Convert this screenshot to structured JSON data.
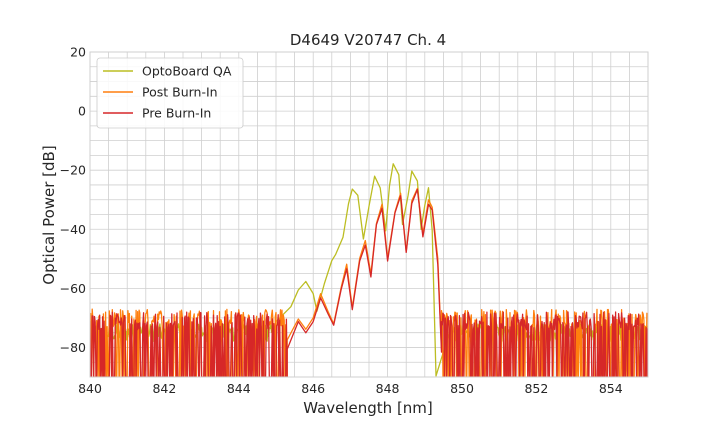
{
  "chart_data": {
    "type": "line",
    "title": "D4649 V20747 Ch. 4",
    "xlabel": "Wavelength [nm]",
    "ylabel": "Optical Power [dB]",
    "xlim": [
      840,
      855
    ],
    "ylim": [
      -90,
      20
    ],
    "x_ticks": [
      840,
      842,
      844,
      846,
      848,
      850,
      852,
      854
    ],
    "y_ticks": [
      20,
      0,
      -20,
      -40,
      -60,
      -80
    ],
    "y_tick_labels": [
      "20",
      "0",
      "−20",
      "−40",
      "−60",
      "−80"
    ],
    "grid": true,
    "legend_position": "top-left",
    "series": [
      {
        "name": "OptoBoard QA",
        "color": "#bcbd22",
        "noise_floor": -75,
        "noise_range": [
          840,
          845.0,
          849.2,
          855
        ],
        "points": [
          [
            845.0,
            -71
          ],
          [
            845.4,
            -66
          ],
          [
            845.6,
            -61
          ],
          [
            845.8,
            -58
          ],
          [
            846.0,
            -62
          ],
          [
            846.1,
            -68
          ],
          [
            846.3,
            -58
          ],
          [
            846.5,
            -51
          ],
          [
            846.6,
            -49
          ],
          [
            846.8,
            -43
          ],
          [
            846.95,
            -31
          ],
          [
            847.05,
            -26
          ],
          [
            847.2,
            -28
          ],
          [
            847.35,
            -43
          ],
          [
            847.5,
            -32
          ],
          [
            847.65,
            -22
          ],
          [
            847.8,
            -26
          ],
          [
            847.95,
            -40
          ],
          [
            848.05,
            -25
          ],
          [
            848.15,
            -18
          ],
          [
            848.3,
            -22
          ],
          [
            848.4,
            -38
          ],
          [
            848.55,
            -28
          ],
          [
            848.65,
            -20
          ],
          [
            848.8,
            -24
          ],
          [
            848.9,
            -40
          ],
          [
            849.0,
            -32
          ],
          [
            849.1,
            -26
          ],
          [
            849.2,
            -40
          ],
          [
            849.3,
            -90
          ]
        ]
      },
      {
        "name": "Post Burn-In",
        "color": "#ff7f0e",
        "noise_floor": -86,
        "noise_range": [
          840,
          845.3,
          849.0,
          855
        ],
        "points": [
          [
            845.3,
            -78
          ],
          [
            845.6,
            -70
          ],
          [
            845.8,
            -74
          ],
          [
            846.0,
            -70
          ],
          [
            846.2,
            -62
          ],
          [
            846.4,
            -68
          ],
          [
            846.55,
            -72
          ],
          [
            846.75,
            -60
          ],
          [
            846.9,
            -52
          ],
          [
            847.05,
            -66
          ],
          [
            847.25,
            -50
          ],
          [
            847.4,
            -44
          ],
          [
            847.55,
            -55
          ],
          [
            847.7,
            -38
          ],
          [
            847.85,
            -32
          ],
          [
            848.0,
            -50
          ],
          [
            848.2,
            -34
          ],
          [
            848.35,
            -28
          ],
          [
            848.5,
            -47
          ],
          [
            848.65,
            -30
          ],
          [
            848.8,
            -26
          ],
          [
            848.95,
            -42
          ],
          [
            849.1,
            -30
          ],
          [
            849.2,
            -32
          ],
          [
            849.35,
            -50
          ],
          [
            849.45,
            -80
          ]
        ]
      },
      {
        "name": "Pre Burn-In",
        "color": "#d62728",
        "noise_floor": -87,
        "noise_range": [
          840,
          845.3,
          849.0,
          855
        ],
        "points": [
          [
            845.3,
            -80
          ],
          [
            845.6,
            -71
          ],
          [
            845.8,
            -75
          ],
          [
            846.0,
            -71
          ],
          [
            846.2,
            -63
          ],
          [
            846.4,
            -69
          ],
          [
            846.55,
            -73
          ],
          [
            846.75,
            -61
          ],
          [
            846.9,
            -53
          ],
          [
            847.05,
            -67
          ],
          [
            847.25,
            -51
          ],
          [
            847.4,
            -45
          ],
          [
            847.55,
            -56
          ],
          [
            847.7,
            -39
          ],
          [
            847.85,
            -33
          ],
          [
            848.0,
            -51
          ],
          [
            848.2,
            -35
          ],
          [
            848.35,
            -29
          ],
          [
            848.5,
            -48
          ],
          [
            848.65,
            -31
          ],
          [
            848.8,
            -27
          ],
          [
            848.95,
            -43
          ],
          [
            849.1,
            -31
          ],
          [
            849.2,
            -33
          ],
          [
            849.35,
            -52
          ],
          [
            849.45,
            -82
          ]
        ]
      }
    ]
  }
}
